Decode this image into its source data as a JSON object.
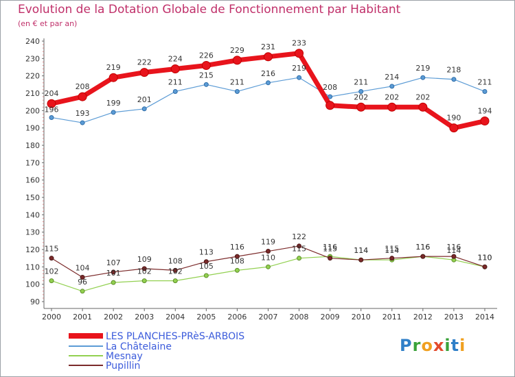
{
  "title": "Evolution de la Dotation Globale de Fonctionnement par Habitant",
  "subtitle": "(en € et par an)",
  "logo": {
    "text": "Proxiti",
    "chars": [
      "P",
      "r",
      "o",
      "x",
      "i",
      "t",
      "i"
    ]
  },
  "chart_data": {
    "type": "line",
    "title": "Evolution de la Dotation Globale de Fonctionnement par Habitant",
    "subtitle": "(en € et par an)",
    "xlabel": "",
    "ylabel": "",
    "x": [
      "2000",
      "2001",
      "2002",
      "2003",
      "2004",
      "2005",
      "2006",
      "2007",
      "2008",
      "2009",
      "2010",
      "2011",
      "2012",
      "2013",
      "2014"
    ],
    "ylim": [
      90,
      240
    ],
    "yticks": [
      "90",
      "100",
      "110",
      "120",
      "130",
      "140",
      "150",
      "160",
      "170",
      "180",
      "190",
      "200",
      "210",
      "220",
      "230",
      "240"
    ],
    "grid": false,
    "legend_position": "bottom-left",
    "series": [
      {
        "name": "LES PLANCHES-PRèS-ARBOIS",
        "color": "#e8141c",
        "values": [
          204,
          208,
          219,
          222,
          224,
          226,
          229,
          231,
          233,
          203,
          202,
          202,
          202,
          190,
          194
        ],
        "labels": [
          "204",
          "208",
          "219",
          "222",
          "224",
          "226",
          "229",
          "231",
          "233",
          "",
          "202",
          "202",
          "202",
          "190",
          "194"
        ]
      },
      {
        "name": "La Châtelaine",
        "color": "#5b9bd5",
        "values": [
          196,
          193,
          199,
          201,
          211,
          215,
          211,
          216,
          219,
          208,
          211,
          214,
          219,
          218,
          211
        ],
        "labels": [
          "196",
          "193",
          "199",
          "201",
          "211",
          "215",
          "211",
          "216",
          "219",
          "208",
          "211",
          "214",
          "219",
          "218",
          "211"
        ]
      },
      {
        "name": "Mesnay",
        "color": "#92d050",
        "values": [
          102,
          96,
          101,
          102,
          102,
          105,
          108,
          110,
          115,
          116,
          114,
          114,
          116,
          114,
          110
        ],
        "labels": [
          "102",
          "96",
          "101",
          "102",
          "102",
          "105",
          "108",
          "110",
          "115",
          "116",
          "114",
          "114",
          "116",
          "114",
          "110"
        ]
      },
      {
        "name": "Pupillin",
        "color": "#7b2a2a",
        "values": [
          115,
          104,
          107,
          109,
          108,
          113,
          116,
          119,
          122,
          115,
          114,
          115,
          116,
          116,
          110
        ],
        "labels": [
          "115",
          "104",
          "107",
          "109",
          "108",
          "113",
          "116",
          "119",
          "122",
          "115",
          "114",
          "115",
          "116",
          "116",
          "110"
        ]
      }
    ]
  }
}
